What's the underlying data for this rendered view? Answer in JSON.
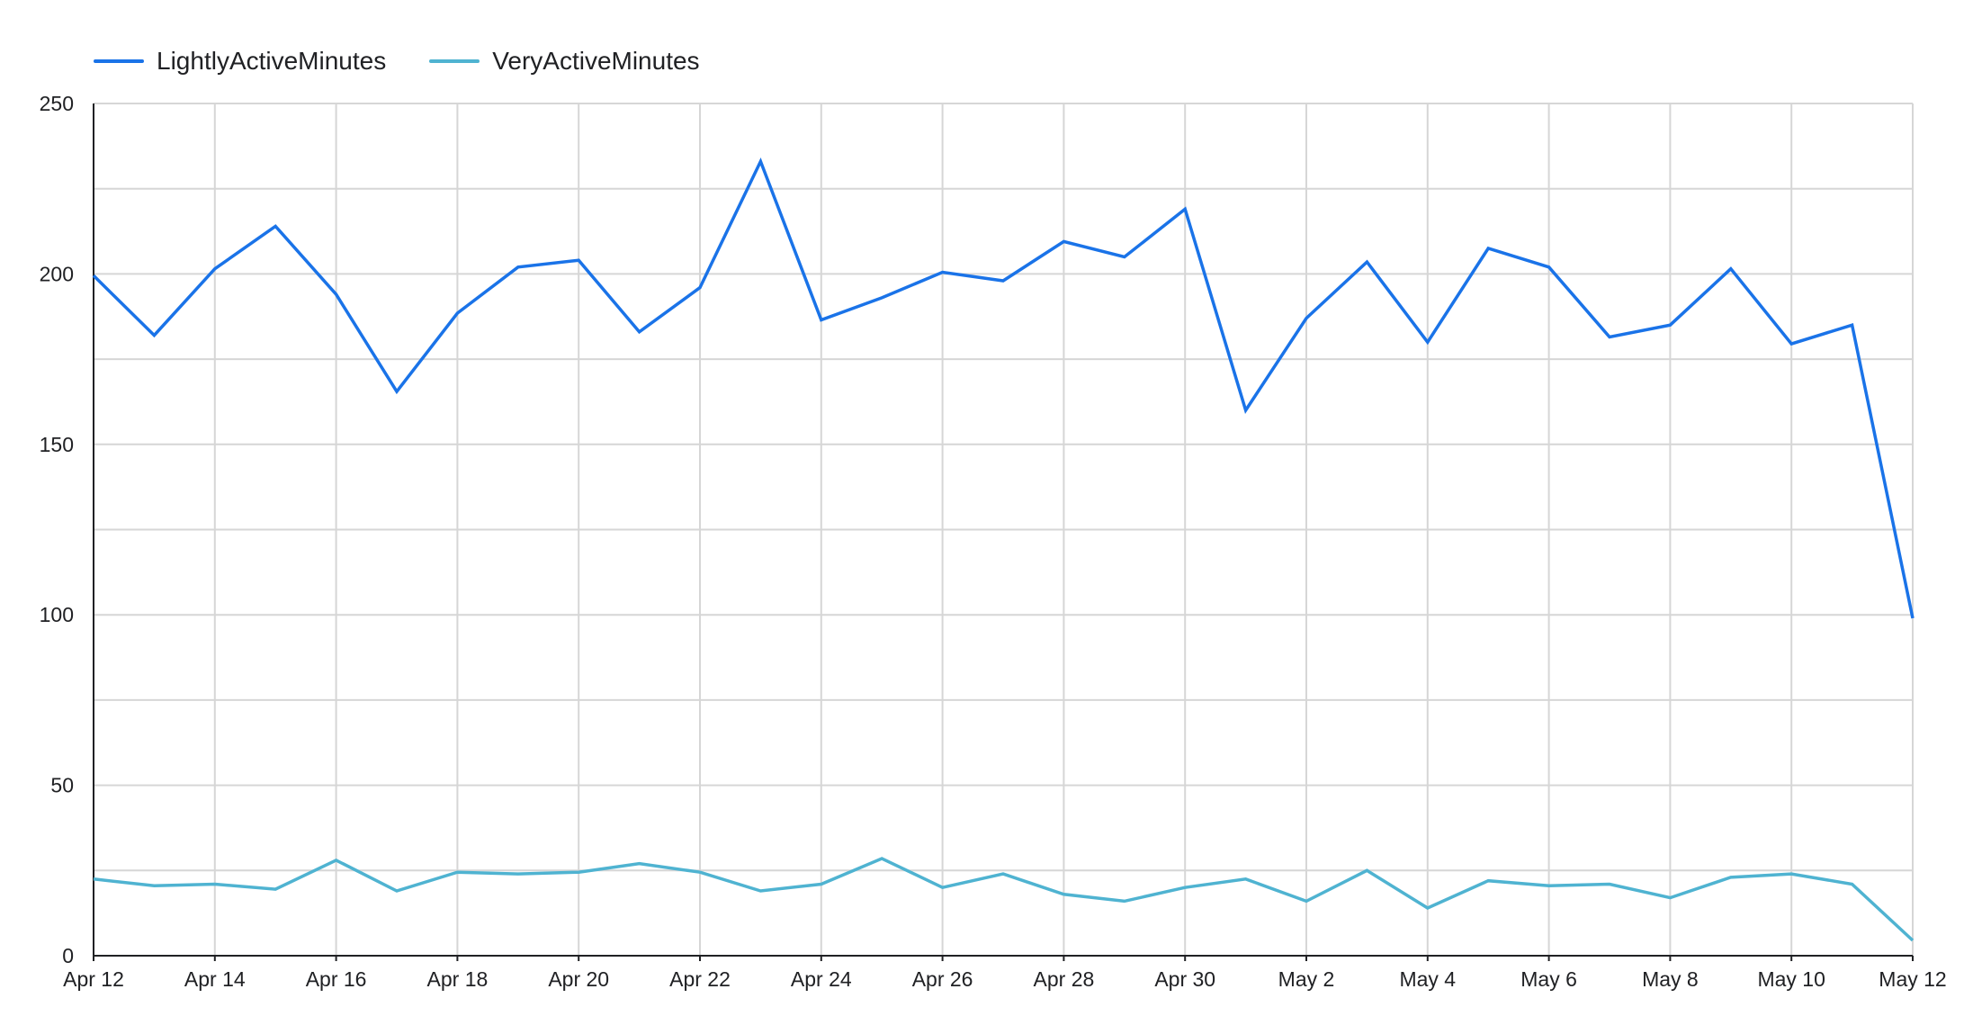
{
  "chart_data": {
    "type": "line",
    "x": [
      "Apr 12",
      "Apr 13",
      "Apr 14",
      "Apr 15",
      "Apr 16",
      "Apr 17",
      "Apr 18",
      "Apr 19",
      "Apr 20",
      "Apr 21",
      "Apr 22",
      "Apr 23",
      "Apr 24",
      "Apr 25",
      "Apr 26",
      "Apr 27",
      "Apr 28",
      "Apr 29",
      "Apr 30",
      "May 1",
      "May 2",
      "May 3",
      "May 4",
      "May 5",
      "May 6",
      "May 7",
      "May 8",
      "May 9",
      "May 10",
      "May 11",
      "May 12"
    ],
    "x_tick_labels": [
      "Apr 12",
      "Apr 14",
      "Apr 16",
      "Apr 18",
      "Apr 20",
      "Apr 22",
      "Apr 24",
      "Apr 26",
      "Apr 28",
      "Apr 30",
      "May 2",
      "May 4",
      "May 6",
      "May 8",
      "May 10",
      "May 12"
    ],
    "y_ticks": [
      0,
      50,
      100,
      150,
      200,
      250
    ],
    "ylim": [
      0,
      250
    ],
    "grid": true,
    "legend_position": "top-left",
    "series": [
      {
        "name": "LightlyActiveMinutes",
        "color": "#1a73e8",
        "values": [
          199.5,
          182,
          201.5,
          214,
          194,
          165.5,
          188.5,
          202,
          204,
          183,
          196,
          233,
          186.5,
          193,
          200.5,
          198,
          209.5,
          205,
          219,
          160,
          187,
          203.5,
          180,
          207.5,
          202,
          181.5,
          185,
          201.5,
          179.5,
          185,
          99
        ]
      },
      {
        "name": "VeryActiveMinutes",
        "color": "#4fb3d1",
        "values": [
          22.5,
          20.5,
          21,
          19.5,
          28,
          19,
          24.5,
          24,
          24.5,
          27,
          24.5,
          19,
          21,
          28.5,
          20,
          24,
          18,
          16,
          20,
          22.5,
          16,
          25,
          14,
          22,
          20.5,
          21,
          17,
          23,
          24,
          21,
          4.5
        ]
      }
    ]
  }
}
